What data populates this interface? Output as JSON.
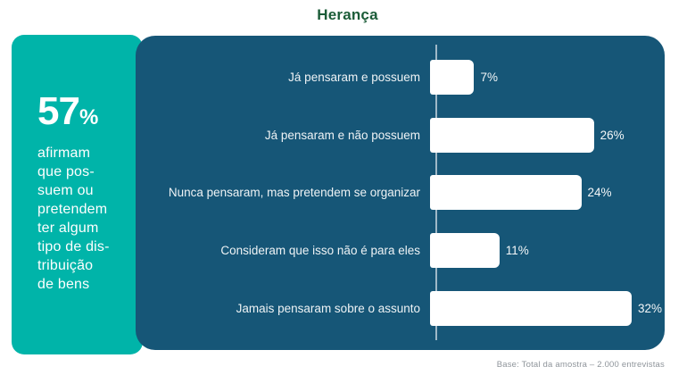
{
  "title": "Herança",
  "highlight": {
    "value": "57",
    "percent_sign": "%",
    "description": "afirmam\nque pos-\nsuem ou\npretendem\nter algum\ntipo de dis-\ntribuição\nde bens"
  },
  "chart_data": {
    "type": "bar",
    "orientation": "horizontal",
    "title": "Herança",
    "categories": [
      "Já pensaram e possuem",
      "Já pensaram e não possuem",
      "Nunca pensaram, mas pretendem se organizar",
      "Consideram que isso não é para eles",
      "Jamais pensaram sobre o assunto"
    ],
    "values": [
      7,
      26,
      24,
      11,
      32
    ],
    "value_labels": [
      "7%",
      "26%",
      "24%",
      "11%",
      "32%"
    ],
    "unit": "%",
    "xlim": [
      0,
      32
    ],
    "grid": false,
    "legend": null,
    "bar_color": "#ffffff",
    "background_color": "#165677"
  },
  "footer": {
    "base_note": "Base: Total da amostra – 2.000 entrevistas"
  },
  "colors": {
    "teal_card": "#00b4a9",
    "panel_blue": "#165677",
    "title_green": "#1b5c38",
    "axis_line": "#9fb9c8",
    "note_gray": "#8f959b"
  }
}
